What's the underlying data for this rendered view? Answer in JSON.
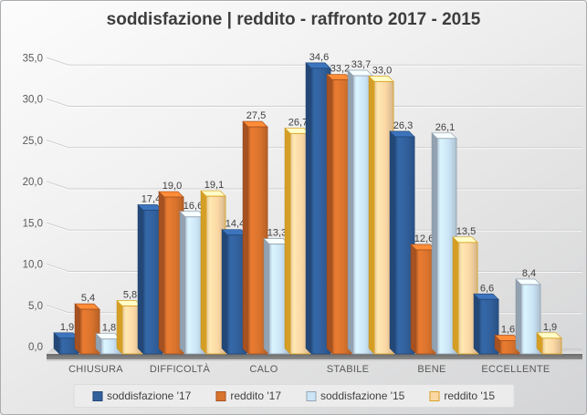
{
  "chart_data": {
    "type": "bar",
    "subtype": "3d-clustered-column",
    "title": "soddisfazione | reddito - raffronto 2017 - 2015",
    "categories": [
      "CHIUSURA",
      "DIFFICOLTÀ",
      "CALO",
      "STABILE",
      "BENE",
      "ECCELLENTE"
    ],
    "series": [
      {
        "name": "soddisfazione '17",
        "color": "#31609C",
        "border": "#24497A",
        "values": [
          1.9,
          17.4,
          14.4,
          34.6,
          26.3,
          6.6
        ]
      },
      {
        "name": "reddito '17",
        "color": "#D9732D",
        "border": "#A85322",
        "values": [
          5.4,
          19.0,
          27.5,
          33.2,
          12.6,
          1.6
        ]
      },
      {
        "name": "soddisfazione '15",
        "color": "#CBE4F6",
        "border": "#96A5B4",
        "values": [
          1.8,
          16.6,
          13.3,
          33.7,
          26.1,
          8.4
        ]
      },
      {
        "name": "reddito '15",
        "color": "#FBD7A4",
        "border": "#D9A227",
        "values": [
          5.8,
          19.1,
          26.7,
          33.0,
          13.5,
          1.9
        ]
      }
    ],
    "ylim": [
      0,
      35
    ],
    "ytick_step": 5,
    "ytick_labels": [
      "0,0",
      "5,0",
      "10,0",
      "15,0",
      "20,0",
      "25,0",
      "30,0",
      "35,0"
    ],
    "xlabel": "",
    "ylabel": "",
    "grid": true,
    "data_labels": true,
    "decimal_separator": ",",
    "legend_position": "bottom",
    "axis_text_color": "#595959",
    "data_label_color": "#3f3f3f",
    "gridline_color": "#cdcdcd"
  }
}
